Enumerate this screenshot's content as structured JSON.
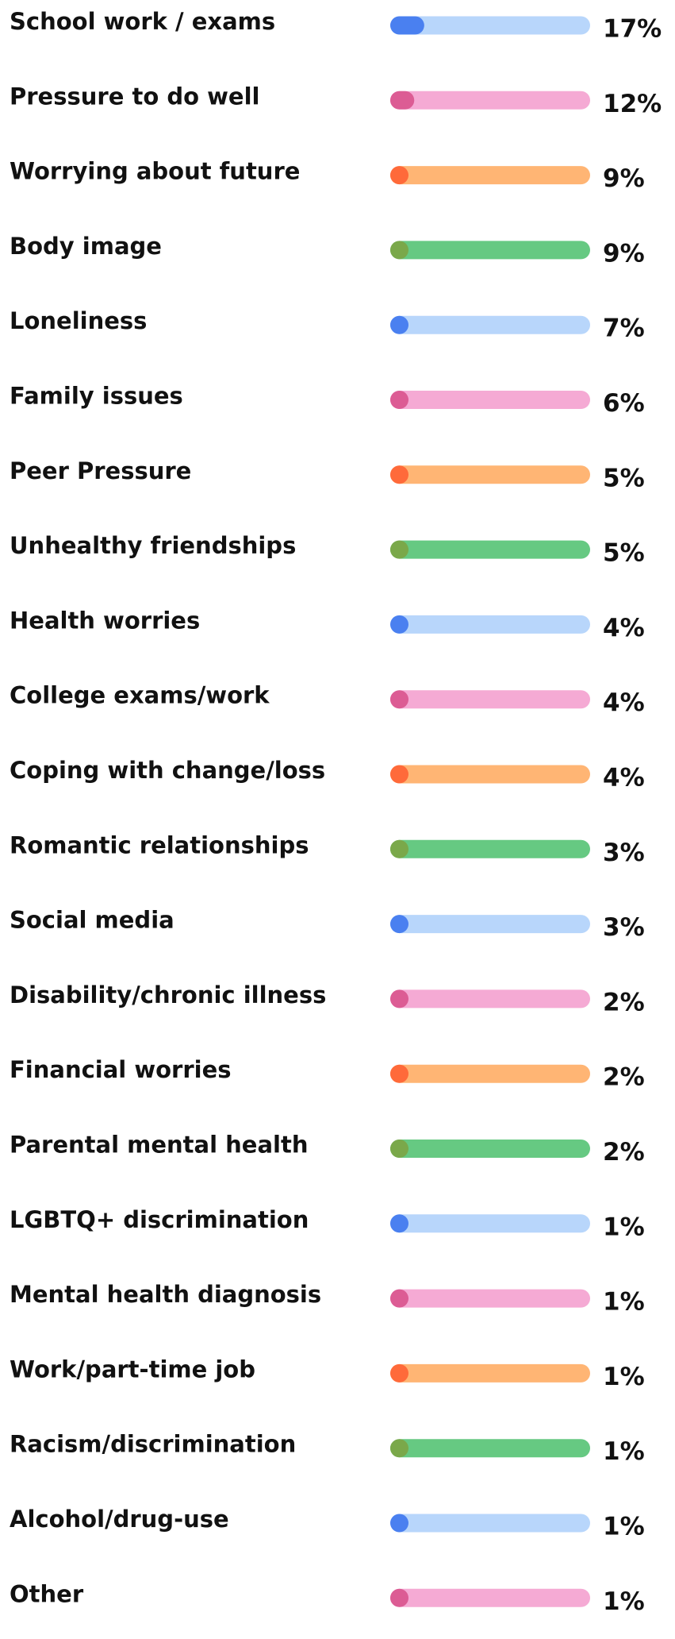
{
  "chart_data": {
    "type": "bar",
    "orientation": "horizontal",
    "categories": [
      "School work / exams",
      "Pressure to do well",
      "Worrying about future",
      "Body image",
      "Loneliness",
      "Family issues",
      "Peer Pressure",
      "Unhealthy friendships",
      "Health worries",
      "College exams/work",
      "Coping with change/loss",
      "Romantic relationships",
      "Social media",
      "Disability/chronic illness",
      "Financial worries",
      "Parental mental health",
      "LGBTQ+ discrimination",
      "Mental health diagnosis",
      "Work/part-time job",
      "Racism/discrimination",
      "Alcohol/drug-use",
      "Other"
    ],
    "values": [
      17,
      12,
      9,
      9,
      7,
      6,
      5,
      5,
      4,
      4,
      4,
      3,
      3,
      2,
      2,
      2,
      1,
      1,
      1,
      1,
      1,
      1
    ],
    "value_labels": [
      "17%",
      "12%",
      "9%",
      "9%",
      "7%",
      "6%",
      "5%",
      "5%",
      "4%",
      "4%",
      "4%",
      "3%",
      "3%",
      "2%",
      "2%",
      "2%",
      "1%",
      "1%",
      "1%",
      "1%",
      "1%",
      "1%"
    ],
    "xlim": [
      0,
      100
    ],
    "palette": [
      {
        "fill": "#4a80f0",
        "track": "#b8d6fb"
      },
      {
        "fill": "#dc5c94",
        "track": "#f5aad4"
      },
      {
        "fill": "#ff6a3a",
        "track": "#ffb574"
      },
      {
        "fill": "#7aa84a",
        "track": "#66c982"
      }
    ]
  }
}
